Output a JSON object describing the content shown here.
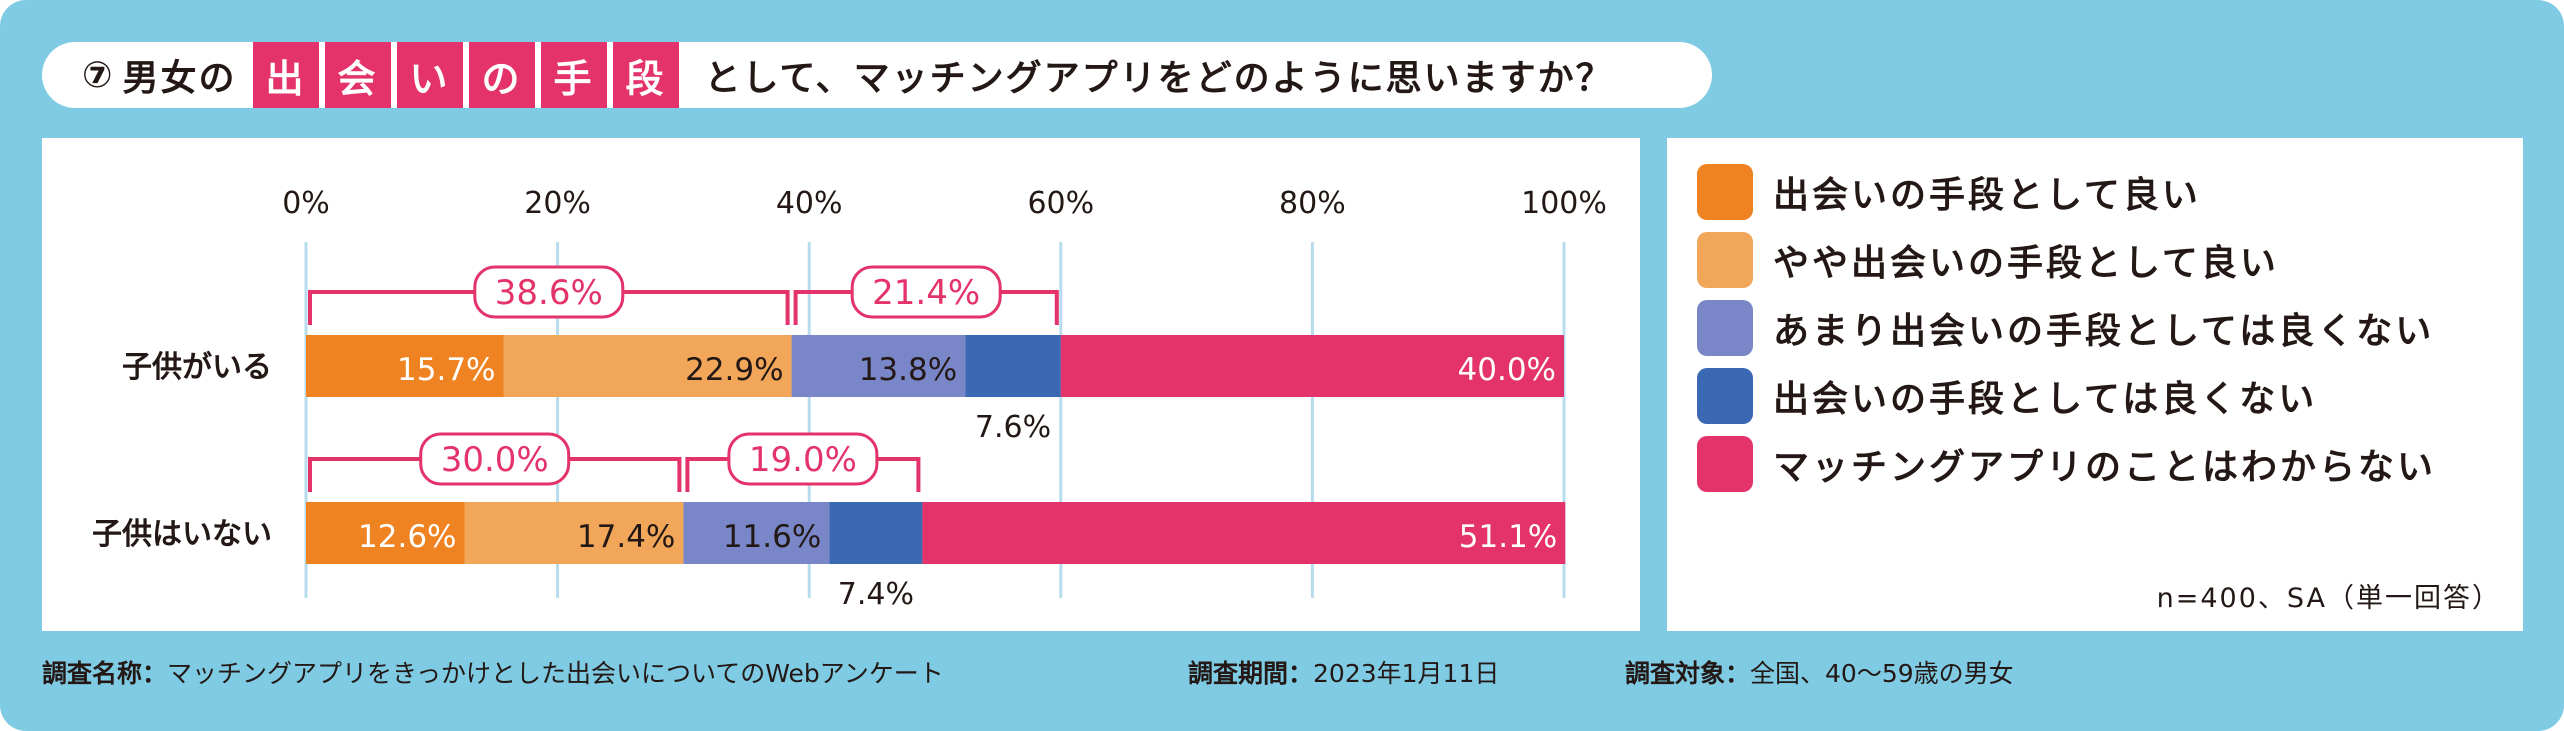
{
  "title": {
    "number": "⑦",
    "prefix": "男女の",
    "highlight_chars": [
      "出",
      "会",
      "い",
      "の",
      "手",
      "段"
    ],
    "suffix": "として、マッチングアプリをどのように思いますか？"
  },
  "chart_data": {
    "type": "bar",
    "orientation": "horizontal-stacked-100",
    "xlim": [
      0,
      100
    ],
    "tick_labels": [
      "0%",
      "20%",
      "40%",
      "60%",
      "80%",
      "100%"
    ],
    "categories": [
      "子供がいる",
      "子供はいない"
    ],
    "series": [
      {
        "name": "出会いの手段として良い",
        "color": "#ef8221",
        "values": [
          15.7,
          12.6
        ],
        "labels": [
          "15.7%",
          "12.6%"
        ],
        "label_color": "#ffffff"
      },
      {
        "name": "やや出会いの手段として良い",
        "color": "#f2a65a",
        "values": [
          22.9,
          17.4
        ],
        "labels": [
          "22.9%",
          "17.4%"
        ],
        "label_color": "#231815"
      },
      {
        "name": "あまり出会いの手段としては良くない",
        "color": "#7987c8",
        "values": [
          13.8,
          11.6
        ],
        "labels": [
          "13.8%",
          "11.6%"
        ],
        "label_color": "#231815"
      },
      {
        "name": "出会いの手段としては良くない",
        "color": "#3b68b3",
        "values": [
          7.6,
          7.4
        ],
        "labels": [
          "7.6%",
          "7.4%"
        ],
        "label_color": "#231815"
      },
      {
        "name": "マッチングアプリのことはわからない",
        "color": "#e3336a",
        "values": [
          40.0,
          51.1
        ],
        "labels": [
          "40.0%",
          "51.1%"
        ],
        "label_color": "#ffffff"
      }
    ],
    "brackets": [
      {
        "row": 0,
        "from": 0,
        "to": 38.6,
        "label": "38.6%"
      },
      {
        "row": 0,
        "from": 38.6,
        "to": 60.0,
        "label": "21.4%"
      },
      {
        "row": 1,
        "from": 0,
        "to": 30.0,
        "label": "30.0%"
      },
      {
        "row": 1,
        "from": 30.0,
        "to": 49.0,
        "label": "19.0%"
      }
    ]
  },
  "sample_note": "n=400、SA（単一回答）",
  "footer": {
    "survey_name_label": "調査名称：",
    "survey_name": "マッチングアプリをきっかけとした出会いについてのWebアンケート",
    "period_label": "調査期間：",
    "period": "2023年1月11日",
    "target_label": "調査対象：",
    "target": "全国、40～59歳の男女"
  }
}
